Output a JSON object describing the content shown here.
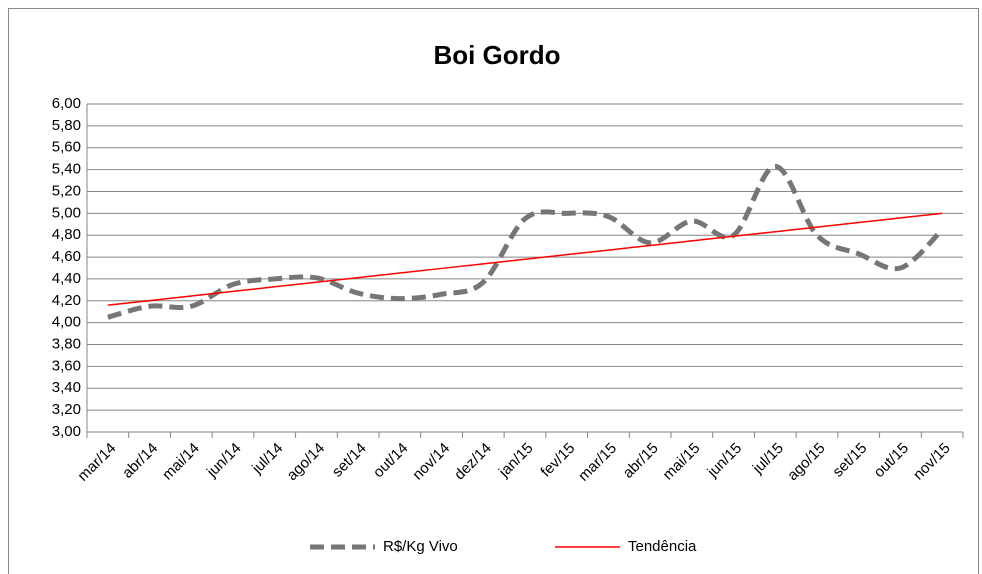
{
  "chart_data": {
    "type": "line",
    "title": "Boi Gordo",
    "categories": [
      "mar/14",
      "abr/14",
      "mai/14",
      "jun/14",
      "jul/14",
      "ago/14",
      "set/14",
      "out/14",
      "nov/14",
      "dez/14",
      "jan/15",
      "fev/15",
      "mar/15",
      "abr/15",
      "mai/15",
      "jun/15",
      "jul/15",
      "ago/15",
      "set/15",
      "out/15",
      "nov/15"
    ],
    "series": [
      {
        "name": "R$/Kg Vivo",
        "color": "#767676",
        "dashed": true,
        "smooth": true,
        "values": [
          4.05,
          4.15,
          4.15,
          4.35,
          4.4,
          4.41,
          4.27,
          4.22,
          4.26,
          4.37,
          4.95,
          5.0,
          4.97,
          4.73,
          4.93,
          4.8,
          5.43,
          4.8,
          4.63,
          4.5,
          4.85
        ]
      },
      {
        "name": "Tendência",
        "color": "#ff0000",
        "dashed": false,
        "smooth": false,
        "values": [
          4.16,
          4.202,
          4.244,
          4.286,
          4.328,
          4.37,
          4.412,
          4.454,
          4.496,
          4.538,
          4.58,
          4.622,
          4.664,
          4.706,
          4.748,
          4.79,
          4.832,
          4.874,
          4.916,
          4.958,
          5.0
        ]
      }
    ],
    "ylim": [
      3,
      6
    ],
    "yticks": [
      {
        "value": 3,
        "label": "3,00"
      },
      {
        "value": 3.2,
        "label": "3,20"
      },
      {
        "value": 3.4,
        "label": "3,40"
      },
      {
        "value": 3.6,
        "label": "3,60"
      },
      {
        "value": 3.8,
        "label": "3,80"
      },
      {
        "value": 4,
        "label": "4,00"
      },
      {
        "value": 4.2,
        "label": "4,20"
      },
      {
        "value": 4.4,
        "label": "4,40"
      },
      {
        "value": 4.6,
        "label": "4,60"
      },
      {
        "value": 4.8,
        "label": "4,80"
      },
      {
        "value": 5,
        "label": "5,00"
      },
      {
        "value": 5.2,
        "label": "5,20"
      },
      {
        "value": 5.4,
        "label": "5,40"
      },
      {
        "value": 5.6,
        "label": "5,60"
      },
      {
        "value": 5.8,
        "label": "5,80"
      },
      {
        "value": 6,
        "label": "6,00"
      }
    ],
    "grid": true,
    "legend": "bottom"
  }
}
